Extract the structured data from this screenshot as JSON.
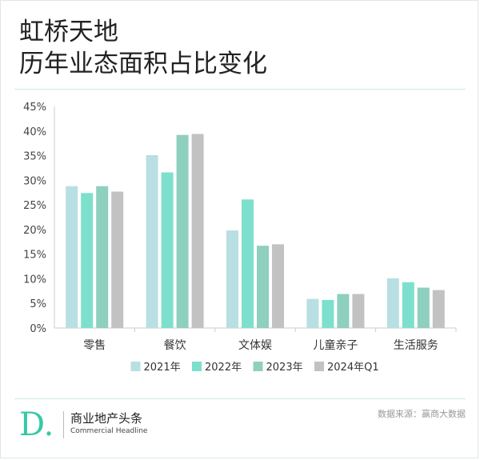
{
  "header": {
    "title_line1": "虹桥天地",
    "title_line2": "历年业态面积占比变化"
  },
  "chart_data": {
    "type": "bar",
    "title": "虹桥天地 历年业态面积占比变化",
    "xlabel": "",
    "ylabel": "",
    "categories": [
      "零售",
      "餐饮",
      "文体娱",
      "儿童亲子",
      "生活服务"
    ],
    "series": [
      {
        "name": "2021年",
        "color": "#b8dfe2",
        "values": [
          28.8,
          35.1,
          19.8,
          5.9,
          10.1
        ]
      },
      {
        "name": "2022年",
        "color": "#7de0cc",
        "values": [
          27.4,
          31.6,
          26.1,
          5.7,
          9.3
        ]
      },
      {
        "name": "2023年",
        "color": "#8ecfbd",
        "values": [
          28.8,
          39.2,
          16.7,
          6.9,
          8.2
        ]
      },
      {
        "name": "2024年Q1",
        "color": "#c2c2c2",
        "values": [
          27.7,
          39.4,
          17.0,
          6.9,
          7.7
        ]
      }
    ],
    "ylim": [
      0,
      45
    ],
    "yticks": [
      0,
      5,
      10,
      15,
      20,
      25,
      30,
      35,
      40,
      45
    ],
    "ytick_labels": [
      "0%",
      "5%",
      "10%",
      "15%",
      "20%",
      "25%",
      "30%",
      "35%",
      "40%",
      "45%"
    ],
    "grid": false,
    "legend_position": "bottom"
  },
  "footer": {
    "logo_cn": "商业地产头条",
    "logo_en": "Commercial Headline",
    "source": "数据来源：赢商大数据"
  },
  "colors": {
    "brand": "#35c9a6",
    "axis": "#cccccc",
    "separator": "#cfe8e4"
  },
  "logo": {
    "letter": "D."
  }
}
